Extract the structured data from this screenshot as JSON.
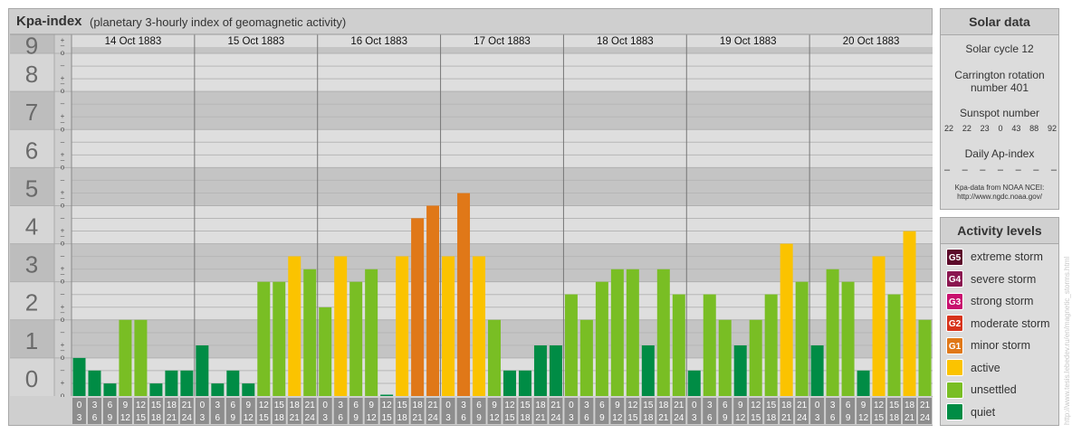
{
  "title": "Kpa-index",
  "subtitle": "(planetary 3-hourly index of geomagnetic activity)",
  "chart_data": {
    "type": "bar",
    "ylim": [
      0,
      9
    ],
    "y_ticks": [
      "0",
      "1",
      "2",
      "3",
      "4",
      "5",
      "6",
      "7",
      "8",
      "9"
    ],
    "minor_marks": [
      "o",
      "+",
      "–"
    ],
    "days": [
      "14 Oct 1883",
      "15 Oct 1883",
      "16 Oct 1883",
      "17 Oct 1883",
      "18 Oct 1883",
      "19 Oct 1883",
      "20 Oct 1883"
    ],
    "hour_ranges": [
      [
        "0",
        "3"
      ],
      [
        "3",
        "6"
      ],
      [
        "6",
        "9"
      ],
      [
        "9",
        "12"
      ],
      [
        "12",
        "15"
      ],
      [
        "15",
        "18"
      ],
      [
        "18",
        "21"
      ],
      [
        "21",
        "24"
      ]
    ],
    "values": [
      [
        1.0,
        0.67,
        0.33,
        2.0,
        2.0,
        0.33,
        0.67,
        0.67
      ],
      [
        1.33,
        0.33,
        0.67,
        0.33,
        3.0,
        3.0,
        3.67,
        3.33
      ],
      [
        2.33,
        3.67,
        3.0,
        3.33,
        0.0,
        3.67,
        4.67,
        5.0
      ],
      [
        3.67,
        5.33,
        3.67,
        2.0,
        0.67,
        0.67,
        1.33,
        1.33
      ],
      [
        2.67,
        2.0,
        3.0,
        3.33,
        3.33,
        1.33,
        3.33,
        2.67
      ],
      [
        0.67,
        2.67,
        2.0,
        1.33,
        2.0,
        2.67,
        4.0,
        3.0
      ],
      [
        1.33,
        3.33,
        3.0,
        0.67,
        3.67,
        2.67,
        4.33,
        2.0
      ]
    ],
    "grid": true
  },
  "solar": {
    "heading": "Solar data",
    "cycle": "Solar cycle 12",
    "carrington_line1": "Carrington rotation",
    "carrington_line2": "number 401",
    "sunspot_heading": "Sunspot number",
    "sunspots": [
      "22",
      "22",
      "23",
      "0",
      "43",
      "88",
      "92"
    ],
    "ap_heading": "Daily Ap-index",
    "ap": [
      "–",
      "–",
      "–",
      "–",
      "–",
      "–",
      "–"
    ],
    "source_line1": "Kpa-data from NOAA NCEI:",
    "source_line2": "http://www.ngdc.noaa.gov/"
  },
  "levels": {
    "heading": "Activity levels",
    "items": [
      {
        "code": "G5",
        "label": "extreme storm",
        "color": "#5c0a2a"
      },
      {
        "code": "G4",
        "label": "severe storm",
        "color": "#8a1650"
      },
      {
        "code": "G3",
        "label": "strong storm",
        "color": "#c8106e"
      },
      {
        "code": "G2",
        "label": "moderate storm",
        "color": "#d7341c"
      },
      {
        "code": "G1",
        "label": "minor storm",
        "color": "#e07818"
      },
      {
        "code": "",
        "label": "active",
        "color": "#fbc300"
      },
      {
        "code": "",
        "label": "unsettled",
        "color": "#79be24"
      },
      {
        "code": "",
        "label": "quiet",
        "color": "#008c45"
      }
    ]
  },
  "credit": "http://www.tesis.lebedev.ru/en/magnetic_storms.html"
}
